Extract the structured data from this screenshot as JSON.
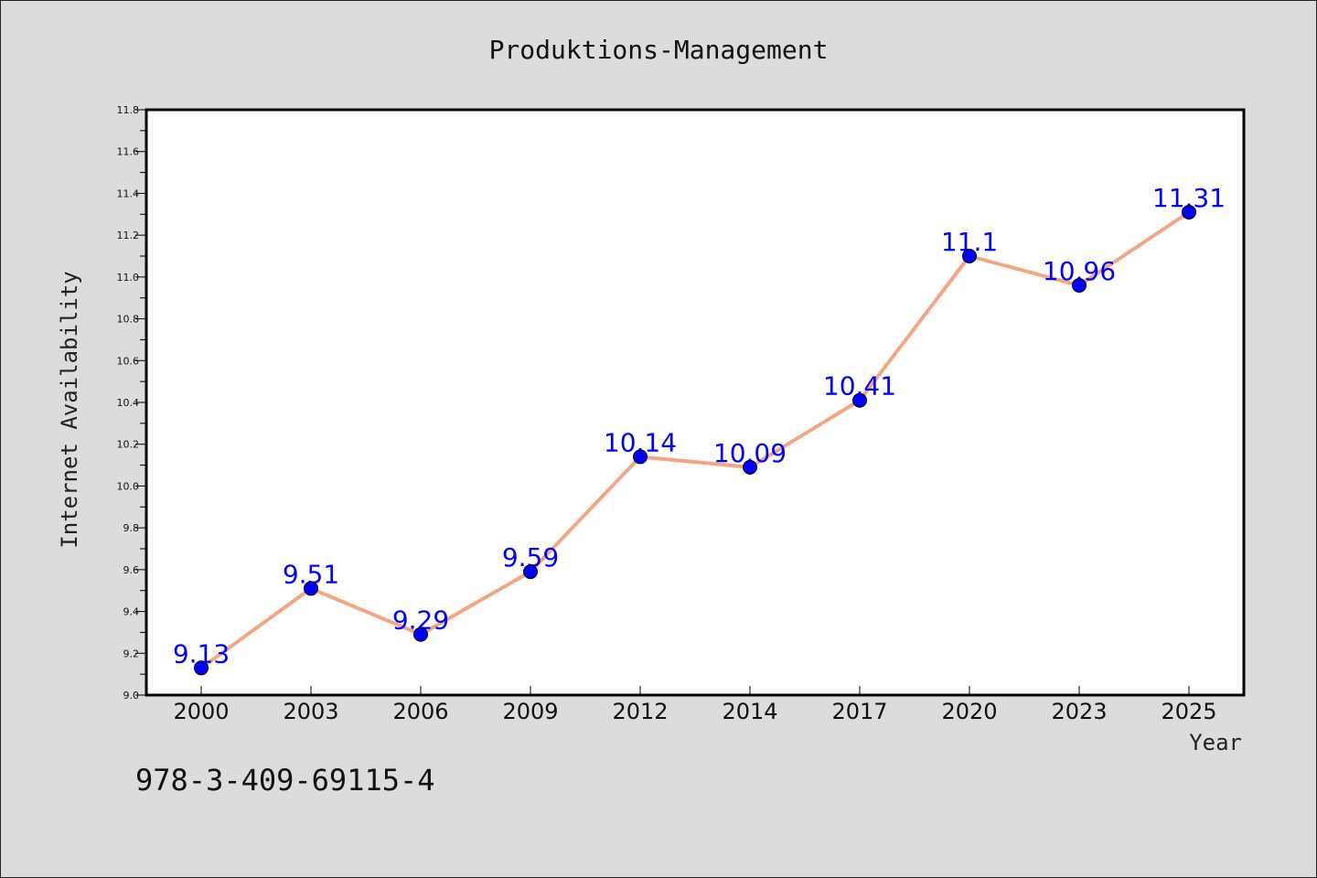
{
  "chart_data": {
    "type": "line",
    "title": "Produktions-Management",
    "xlabel": "Year",
    "ylabel": "Internet Availability",
    "categories": [
      "2000",
      "2003",
      "2006",
      "2009",
      "2012",
      "2014",
      "2017",
      "2020",
      "2023",
      "2025"
    ],
    "series": [
      {
        "values": [
          9.13,
          9.51,
          9.29,
          9.59,
          10.14,
          10.09,
          10.41,
          11.1,
          10.96,
          11.31
        ],
        "data_labels": [
          "9.13",
          "9.51",
          "9.29",
          "9.59",
          "10.14",
          "10.09",
          "10.41",
          "11.1",
          "10.96",
          "11.31"
        ],
        "line_color": "#f4a582",
        "marker_color": "#0000ff"
      }
    ],
    "ylim": [
      9.0,
      11.8
    ],
    "yticks": [
      "9.0",
      "9.2",
      "9.4",
      "9.6",
      "9.8",
      "10.0",
      "10.2",
      "10.4",
      "10.6",
      "10.8",
      "11.0",
      "11.2",
      "11.4",
      "11.6",
      "11.8"
    ],
    "grid": false,
    "legend": "none"
  },
  "footer_text": "978-3-409-69115-4"
}
